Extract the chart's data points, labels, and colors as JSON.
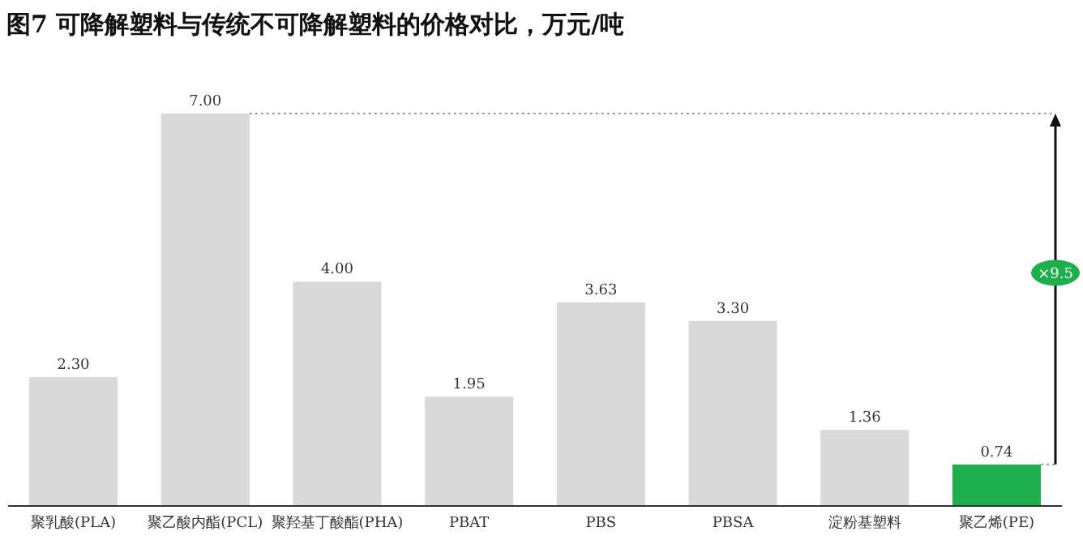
{
  "chart_data": {
    "type": "bar",
    "title": "图7 可降解塑料与传统不可降解塑料的价格对比，万元/吨",
    "categories": [
      "聚乳酸(PLA)",
      "聚乙酸内酯(PCL)",
      "聚羟基丁酸酯(PHA)",
      "PBAT",
      "PBS",
      "PBSA",
      "淀粉基塑料",
      "聚乙烯(PE)"
    ],
    "values": [
      2.3,
      7.0,
      4.0,
      1.95,
      3.63,
      3.3,
      1.36,
      0.74
    ],
    "colors": [
      "#d9d9d9",
      "#d9d9d9",
      "#d9d9d9",
      "#d9d9d9",
      "#d9d9d9",
      "#d9d9d9",
      "#d9d9d9",
      "#1fae4c"
    ],
    "value_labels": [
      "2.30",
      "7.00",
      "4.00",
      "1.95",
      "3.63",
      "3.30",
      "1.36",
      "0.74"
    ],
    "ylim": [
      0,
      7
    ],
    "tick_labels": "x",
    "ref_lines": [
      {
        "axis": "y",
        "value": 7,
        "color": "#999999",
        "line_style": "dotted"
      }
    ],
    "annotations": [
      "×9.5"
    ]
  }
}
